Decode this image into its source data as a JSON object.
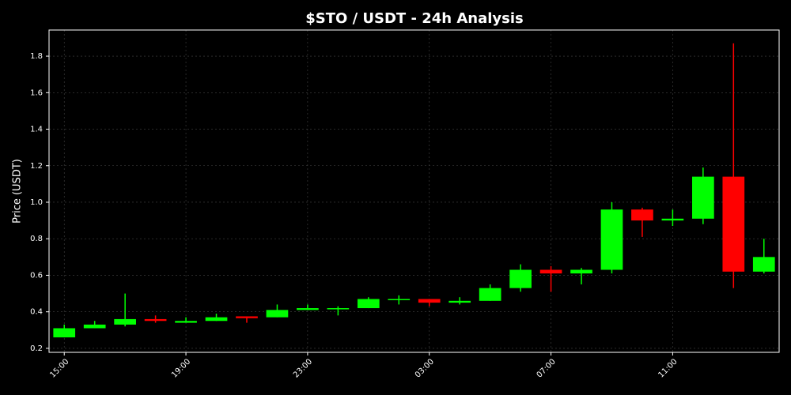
{
  "chart_data": {
    "type": "candlestick",
    "title": "$STO / USDT - 24h Analysis",
    "y_label": "Price (USDT)",
    "categories": [
      "15:00",
      null,
      null,
      null,
      "19:00",
      null,
      null,
      null,
      "23:00",
      null,
      null,
      null,
      "03:00",
      null,
      null,
      null,
      "07:00",
      null,
      null,
      null,
      "11:00",
      null,
      null,
      null
    ],
    "open": [
      0.26,
      0.31,
      0.33,
      0.36,
      0.34,
      0.35,
      0.375,
      0.37,
      0.41,
      0.42,
      0.42,
      0.47,
      0.47,
      0.45,
      0.46,
      0.53,
      0.63,
      0.61,
      0.63,
      0.96,
      0.9,
      0.91,
      1.14,
      0.62
    ],
    "high": [
      0.33,
      0.35,
      0.5,
      0.38,
      0.37,
      0.39,
      0.375,
      0.44,
      0.44,
      0.43,
      0.48,
      0.49,
      0.47,
      0.48,
      0.55,
      0.66,
      0.65,
      0.64,
      1.0,
      0.97,
      0.96,
      1.19,
      1.87,
      0.8
    ],
    "low": [
      0.26,
      0.31,
      0.32,
      0.34,
      0.34,
      0.35,
      0.34,
      0.37,
      0.41,
      0.38,
      0.42,
      0.44,
      0.43,
      0.44,
      0.46,
      0.51,
      0.51,
      0.55,
      0.61,
      0.81,
      0.87,
      0.88,
      0.53,
      0.61
    ],
    "close": [
      0.31,
      0.33,
      0.36,
      0.35,
      0.35,
      0.37,
      0.365,
      0.41,
      0.42,
      0.42,
      0.47,
      0.47,
      0.45,
      0.46,
      0.53,
      0.63,
      0.61,
      0.63,
      0.96,
      0.9,
      0.91,
      1.14,
      0.62,
      0.7
    ],
    "up_color": "#00ff00",
    "down_color": "#ff0000",
    "ylim": [
      0.178,
      1.943
    ],
    "yticks": [
      0.2,
      0.4,
      0.6,
      0.8,
      {
        "value": 1,
        "label": "1.0"
      },
      1.2,
      1.4,
      1.6,
      1.8
    ],
    "grid": true
  }
}
